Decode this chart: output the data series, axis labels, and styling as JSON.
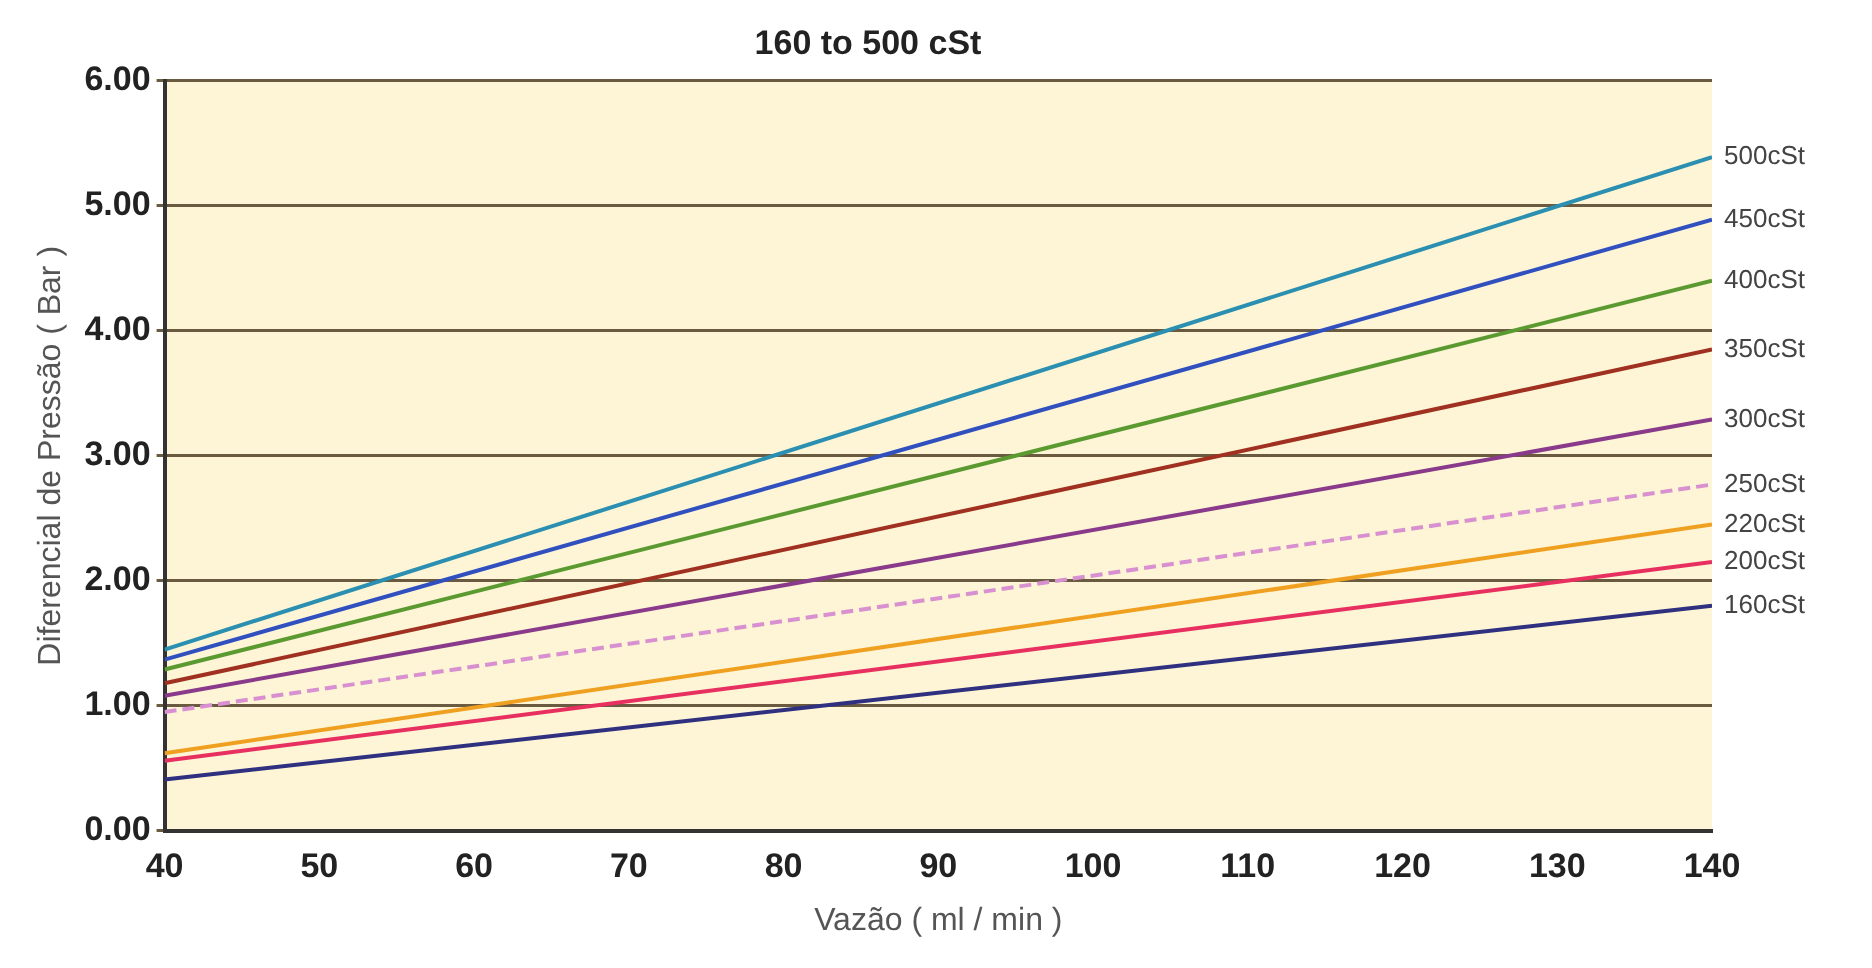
{
  "chart_data": {
    "type": "line",
    "title": "160 to 500 cSt",
    "xlabel": "Vazão ( ml / min )",
    "ylabel": "Diferencial de Pressão ( Bar )",
    "x": [
      40,
      140
    ],
    "series": [
      {
        "name": "500cSt",
        "color": "#2a8fb0",
        "values": [
          1.45,
          5.39
        ]
      },
      {
        "name": "450cSt",
        "color": "#3050c0",
        "values": [
          1.37,
          4.89
        ]
      },
      {
        "name": "400cSt",
        "color": "#5a9a30",
        "values": [
          1.29,
          4.4
        ]
      },
      {
        "name": "350cSt",
        "color": "#a03020",
        "values": [
          1.18,
          3.85
        ]
      },
      {
        "name": "300cSt",
        "color": "#8a3a8a",
        "values": [
          1.08,
          3.29
        ]
      },
      {
        "name": "250cSt",
        "color": "#d890d0",
        "values": [
          0.95,
          2.77
        ],
        "line_style": "dashed"
      },
      {
        "name": "220cSt",
        "color": "#f0a020",
        "values": [
          0.62,
          2.45
        ]
      },
      {
        "name": "200cSt",
        "color": "#e83060",
        "values": [
          0.56,
          2.15
        ]
      },
      {
        "name": "160cSt",
        "color": "#303080",
        "values": [
          0.41,
          1.8
        ]
      }
    ],
    "xlim": [
      40,
      140
    ],
    "xticks": [
      40,
      50,
      60,
      70,
      80,
      90,
      100,
      110,
      120,
      130,
      140
    ],
    "ylim": [
      0,
      6
    ],
    "yticks": [
      {
        "value": 0,
        "label": "0.00"
      },
      {
        "value": 1,
        "label": "1.00"
      },
      {
        "value": 2,
        "label": "2.00"
      },
      {
        "value": 3,
        "label": "3.00"
      },
      {
        "value": 4,
        "label": "4.00"
      },
      {
        "value": 5,
        "label": "5.00"
      },
      {
        "value": 6,
        "label": "6.00"
      }
    ],
    "grid": "y",
    "legend": false,
    "marker": "none",
    "line_style": "solid"
  }
}
